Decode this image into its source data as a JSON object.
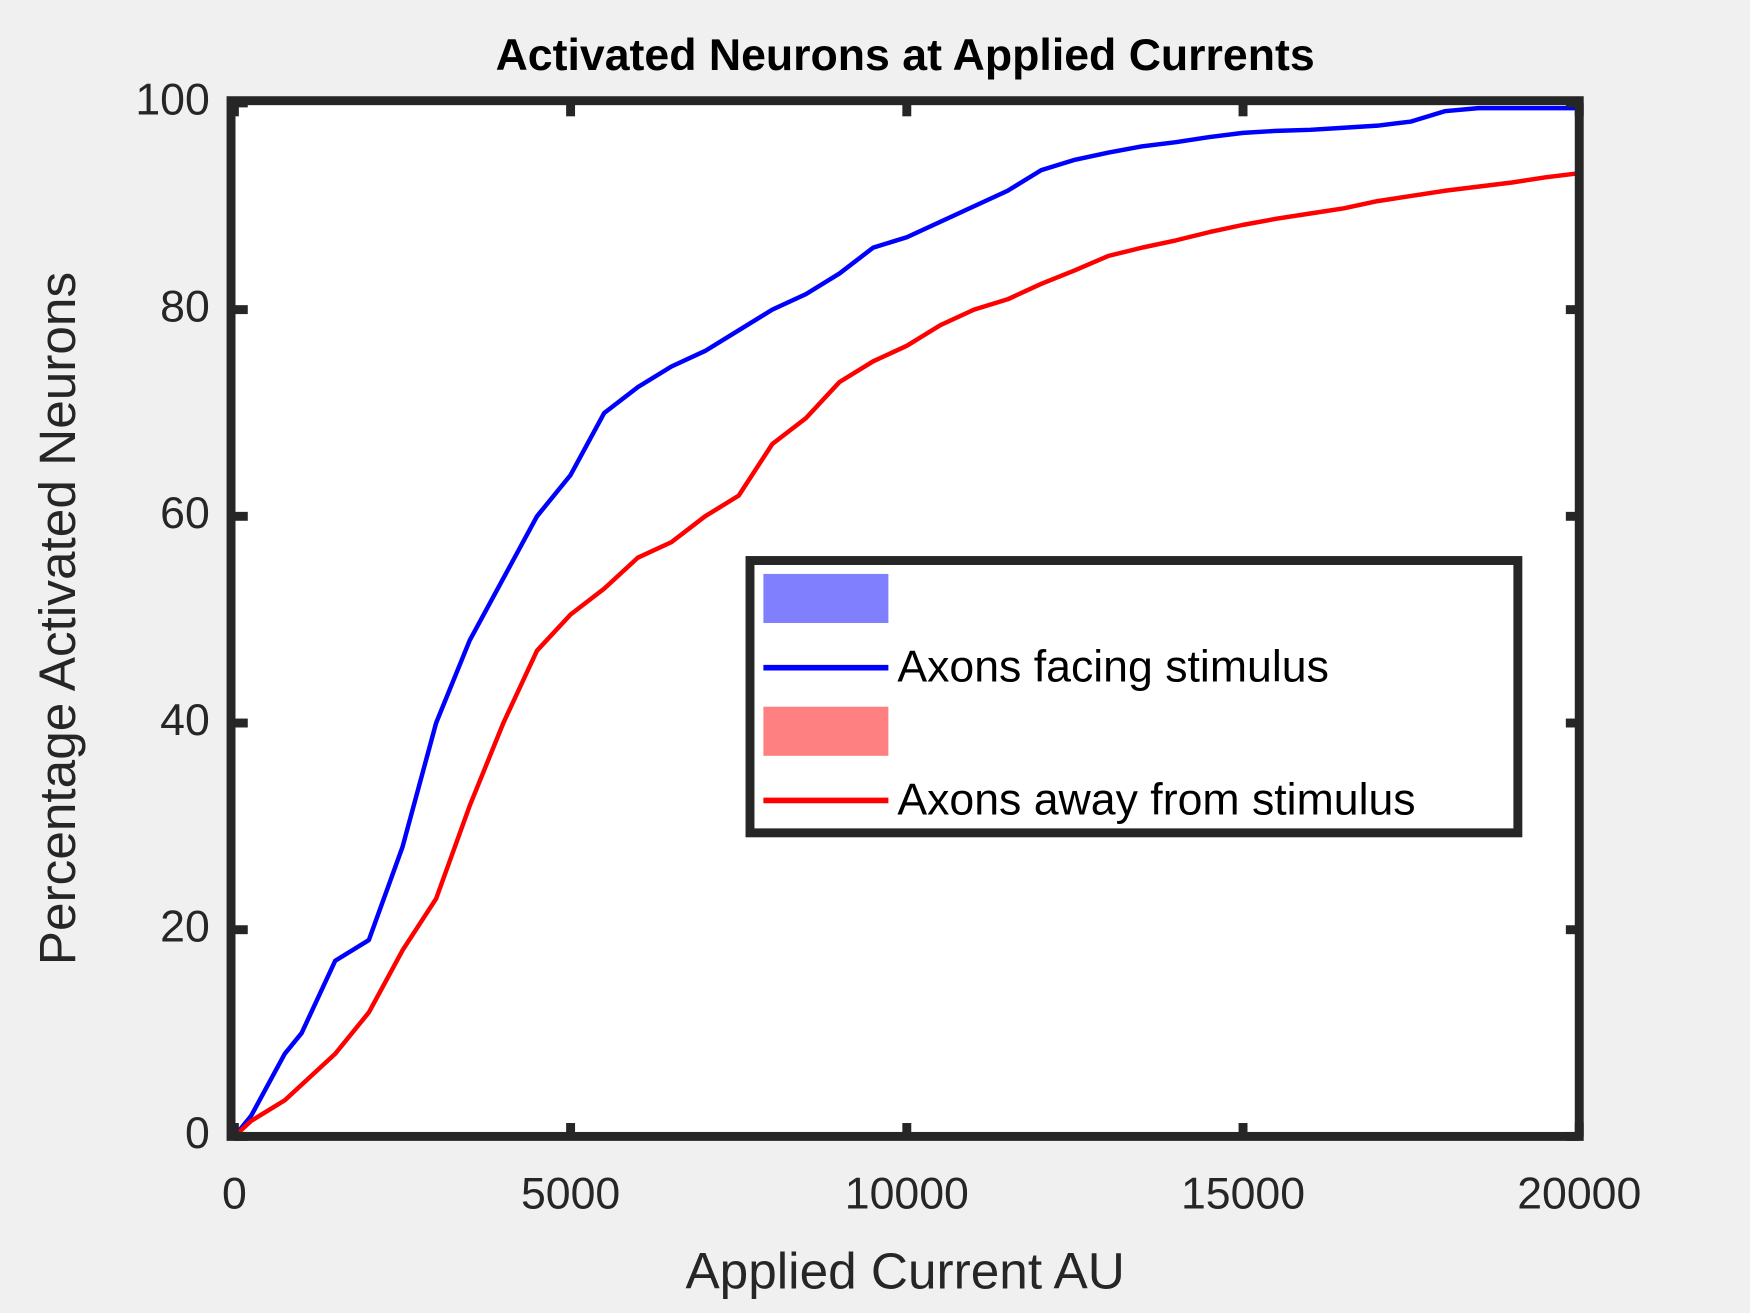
{
  "chart_data": {
    "type": "line",
    "title": "Activated Neurons at Applied Currents",
    "xlabel": "Applied Current AU",
    "ylabel": "Percentage Activated Neurons",
    "x": [
      0,
      250,
      500,
      750,
      1000,
      1500,
      2000,
      2500,
      3000,
      3500,
      4000,
      4500,
      5000,
      5500,
      6000,
      6500,
      7000,
      7500,
      8000,
      8500,
      9000,
      9500,
      10000,
      10500,
      11000,
      11500,
      12000,
      12500,
      13000,
      13500,
      14000,
      14500,
      15000,
      15500,
      16000,
      16500,
      17000,
      17500,
      18000,
      18500,
      19000,
      19500,
      20000
    ],
    "series": [
      {
        "name": "Axons facing stimulus",
        "color": "#0000ff",
        "fill_color": "#8080ff",
        "values": [
          0,
          2,
          5,
          8,
          10,
          17,
          19,
          28,
          40,
          48,
          54,
          60,
          64,
          70,
          72.5,
          74.5,
          76,
          78,
          80,
          81.5,
          83.5,
          86,
          87,
          88.5,
          90,
          91.5,
          93.5,
          94.5,
          95.2,
          95.8,
          96.2,
          96.7,
          97.1,
          97.3,
          97.4,
          97.6,
          97.8,
          98.2,
          99.2,
          99.5,
          99.5,
          99.5,
          99.5
        ]
      },
      {
        "name": "Axons away from stimulus",
        "color": "#ff0000",
        "fill_color": "#ff8080",
        "values": [
          0,
          1.5,
          2.5,
          3.5,
          5,
          8,
          12,
          18,
          23,
          32,
          40,
          47,
          50.5,
          53,
          56,
          57.5,
          60,
          62,
          67,
          69.5,
          73,
          75,
          76.5,
          78.5,
          80,
          81,
          82.5,
          83.8,
          85.2,
          86,
          86.7,
          87.5,
          88.2,
          88.8,
          89.3,
          89.8,
          90.5,
          91,
          91.5,
          91.9,
          92.3,
          92.8,
          93.2
        ]
      }
    ],
    "xlim": [
      0,
      20000
    ],
    "xticks": [
      0,
      5000,
      10000,
      15000,
      20000
    ],
    "ylim": [
      0,
      100
    ],
    "yticks": [
      0,
      20,
      40,
      60,
      80,
      100
    ],
    "legend": "right"
  }
}
